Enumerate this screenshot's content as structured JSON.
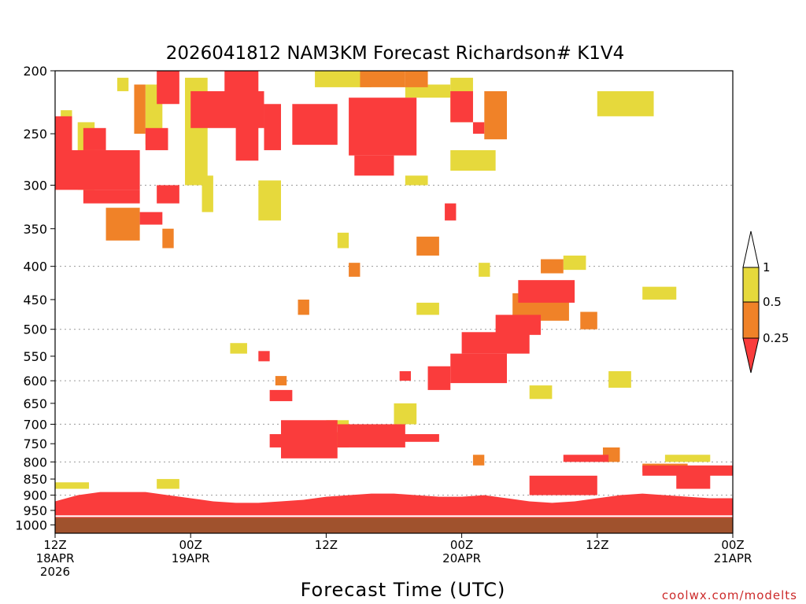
{
  "chart_data": {
    "type": "heatmap",
    "title": "2026041812 NAM3KM Forecast Richardson# K1V4",
    "xlabel": "Forecast Time (UTC)",
    "ylabel": "",
    "credit": "coolwx.com/modelts",
    "x_unit": "hours after 2026-04-18 12Z",
    "xlim": [
      0,
      60
    ],
    "x_ticks": [
      {
        "value": 0,
        "lines": [
          "12Z",
          "18APR",
          "2026"
        ]
      },
      {
        "value": 12,
        "lines": [
          "00Z",
          "19APR"
        ]
      },
      {
        "value": 24,
        "lines": [
          "12Z"
        ]
      },
      {
        "value": 36,
        "lines": [
          "00Z",
          "20APR"
        ]
      },
      {
        "value": 48,
        "lines": [
          "12Z"
        ]
      },
      {
        "value": 60,
        "lines": [
          "00Z",
          "21APR"
        ]
      }
    ],
    "y_scale": "log-pressure (reversed)",
    "ylim": [
      1000,
      200
    ],
    "y_ticks": [
      200,
      250,
      300,
      350,
      400,
      450,
      500,
      550,
      600,
      650,
      700,
      750,
      800,
      850,
      900,
      950,
      1000
    ],
    "gridlines_hpa": [
      300,
      400,
      500,
      600,
      700,
      800,
      900,
      1000
    ],
    "colorbar": {
      "ticks": [
        "1",
        "0.5",
        "0.25"
      ],
      "bins": [
        {
          "range": "> 1",
          "color": "#ffffff"
        },
        {
          "range": "0.5 - 1",
          "color": "#e6d93c"
        },
        {
          "range": "0.25 - 0.5",
          "color": "#f08228"
        },
        {
          "range": "< 0.25",
          "color": "#fa3c3c"
        }
      ]
    },
    "ground_color": "#a0522d",
    "ground_top_hpa": 975,
    "series": [
      {
        "category": "0.5 - 1",
        "color": "#e6d93c",
        "regions": [
          {
            "t": [
              5.5,
              6.5
            ],
            "p": [
              205,
              215
            ]
          },
          {
            "t": [
              8,
              9.5
            ],
            "p": [
              210,
              260
            ]
          },
          {
            "t": [
              11.5,
              13.5
            ],
            "p": [
              205,
              300
            ]
          },
          {
            "t": [
              13,
              14
            ],
            "p": [
              290,
              330
            ]
          },
          {
            "t": [
              2,
              3.5
            ],
            "p": [
              240,
              305
            ]
          },
          {
            "t": [
              0.5,
              1.5
            ],
            "p": [
              230,
              255
            ]
          },
          {
            "t": [
              18,
              20
            ],
            "p": [
              295,
              340
            ]
          },
          {
            "t": [
              23,
              28
            ],
            "p": [
              200,
              212
            ]
          },
          {
            "t": [
              31,
              35
            ],
            "p": [
              210,
              220
            ]
          },
          {
            "t": [
              35,
              37
            ],
            "p": [
              205,
              240
            ]
          },
          {
            "t": [
              35,
              39
            ],
            "p": [
              265,
              285
            ]
          },
          {
            "t": [
              31,
              33
            ],
            "p": [
              290,
              300
            ]
          },
          {
            "t": [
              25,
              26
            ],
            "p": [
              355,
              375
            ]
          },
          {
            "t": [
              32,
              34
            ],
            "p": [
              455,
              475
            ]
          },
          {
            "t": [
              37.5,
              38.5
            ],
            "p": [
              395,
              415
            ]
          },
          {
            "t": [
              45,
              47
            ],
            "p": [
              385,
              405
            ]
          },
          {
            "t": [
              48,
              53
            ],
            "p": [
              215,
              235
            ]
          },
          {
            "t": [
              52,
              55
            ],
            "p": [
              430,
              450
            ]
          },
          {
            "t": [
              42,
              44
            ],
            "p": [
              610,
              640
            ]
          },
          {
            "t": [
              49,
              51
            ],
            "p": [
              580,
              615
            ]
          },
          {
            "t": [
              30,
              32
            ],
            "p": [
              650,
              700
            ]
          },
          {
            "t": [
              24,
              26
            ],
            "p": [
              690,
              705
            ]
          },
          {
            "t": [
              9,
              11
            ],
            "p": [
              850,
              880
            ]
          },
          {
            "t": [
              0,
              3
            ],
            "p": [
              860,
              880
            ]
          },
          {
            "t": [
              54,
              58
            ],
            "p": [
              780,
              800
            ]
          },
          {
            "t": [
              15.5,
              17
            ],
            "p": [
              525,
              545
            ]
          }
        ]
      },
      {
        "category": "0.25 - 0.5",
        "color": "#f08228",
        "regions": [
          {
            "t": [
              7,
              8
            ],
            "p": [
              210,
              250
            ]
          },
          {
            "t": [
              4.5,
              7.5
            ],
            "p": [
              325,
              365
            ]
          },
          {
            "t": [
              9.5,
              10.5
            ],
            "p": [
              350,
              375
            ]
          },
          {
            "t": [
              27,
              31
            ],
            "p": [
              200,
              212
            ]
          },
          {
            "t": [
              31,
              33
            ],
            "p": [
              200,
              212
            ]
          },
          {
            "t": [
              38,
              40
            ],
            "p": [
              215,
              255
            ]
          },
          {
            "t": [
              32,
              34
            ],
            "p": [
              360,
              385
            ]
          },
          {
            "t": [
              26,
              27
            ],
            "p": [
              395,
              415
            ]
          },
          {
            "t": [
              21.5,
              22.5
            ],
            "p": [
              450,
              475
            ]
          },
          {
            "t": [
              40.5,
              45.5
            ],
            "p": [
              440,
              485
            ]
          },
          {
            "t": [
              43,
              45
            ],
            "p": [
              390,
              410
            ]
          },
          {
            "t": [
              46.5,
              48
            ],
            "p": [
              470,
              500
            ]
          },
          {
            "t": [
              48.5,
              50
            ],
            "p": [
              760,
              800
            ]
          },
          {
            "t": [
              52,
              56
            ],
            "p": [
              805,
              830
            ]
          },
          {
            "t": [
              23,
              26
            ],
            "p": [
              720,
              760
            ]
          },
          {
            "t": [
              19.5,
              20.5
            ],
            "p": [
              590,
              610
            ]
          },
          {
            "t": [
              37,
              38
            ],
            "p": [
              780,
              810
            ]
          }
        ]
      },
      {
        "category": "< 0.25",
        "color": "#fa3c3c",
        "regions": [
          {
            "t": [
              9,
              11
            ],
            "p": [
              200,
              225
            ]
          },
          {
            "t": [
              15,
              18
            ],
            "p": [
              200,
              230
            ]
          },
          {
            "t": [
              12,
              18.5
            ],
            "p": [
              215,
              245
            ]
          },
          {
            "t": [
              16,
              18
            ],
            "p": [
              240,
              275
            ]
          },
          {
            "t": [
              18.5,
              20
            ],
            "p": [
              225,
              265
            ]
          },
          {
            "t": [
              21,
              25
            ],
            "p": [
              225,
              260
            ]
          },
          {
            "t": [
              26,
              32
            ],
            "p": [
              220,
              270
            ]
          },
          {
            "t": [
              26.5,
              30
            ],
            "p": [
              270,
              290
            ]
          },
          {
            "t": [
              35,
              37
            ],
            "p": [
              215,
              240
            ]
          },
          {
            "t": [
              37,
              38
            ],
            "p": [
              240,
              250
            ]
          },
          {
            "t": [
              0,
              7.5
            ],
            "p": [
              265,
              305
            ]
          },
          {
            "t": [
              2.5,
              7.5
            ],
            "p": [
              305,
              320
            ]
          },
          {
            "t": [
              0,
              1.5
            ],
            "p": [
              235,
              270
            ]
          },
          {
            "t": [
              2.5,
              4.5
            ],
            "p": [
              245,
              265
            ]
          },
          {
            "t": [
              9,
              11
            ],
            "p": [
              300,
              320
            ]
          },
          {
            "t": [
              8,
              10
            ],
            "p": [
              245,
              265
            ]
          },
          {
            "t": [
              7.5,
              9.5
            ],
            "p": [
              330,
              345
            ]
          },
          {
            "t": [
              34.5,
              35.5
            ],
            "p": [
              320,
              340
            ]
          },
          {
            "t": [
              41,
              46
            ],
            "p": [
              420,
              455
            ]
          },
          {
            "t": [
              39,
              43
            ],
            "p": [
              475,
              510
            ]
          },
          {
            "t": [
              36,
              42
            ],
            "p": [
              505,
              545
            ]
          },
          {
            "t": [
              35,
              40
            ],
            "p": [
              545,
              605
            ]
          },
          {
            "t": [
              33,
              35
            ],
            "p": [
              570,
              620
            ]
          },
          {
            "t": [
              20,
              25
            ],
            "p": [
              690,
              790
            ]
          },
          {
            "t": [
              25,
              31
            ],
            "p": [
              700,
              760
            ]
          },
          {
            "t": [
              30,
              34
            ],
            "p": [
              725,
              745
            ]
          },
          {
            "t": [
              19,
              23
            ],
            "p": [
              725,
              760
            ]
          },
          {
            "t": [
              18,
              19
            ],
            "p": [
              540,
              560
            ]
          },
          {
            "t": [
              19,
              21
            ],
            "p": [
              620,
              645
            ]
          },
          {
            "t": [
              30.5,
              31.5
            ],
            "p": [
              580,
              600
            ]
          },
          {
            "t": [
              45,
              49
            ],
            "p": [
              780,
              800
            ]
          },
          {
            "t": [
              52,
              60
            ],
            "p": [
              810,
              840
            ]
          },
          {
            "t": [
              55,
              58
            ],
            "p": [
              830,
              880
            ]
          },
          {
            "t": [
              42,
              48
            ],
            "p": [
              840,
              900
            ]
          }
        ]
      }
    ],
    "boundary_layer": [
      {
        "t": 0,
        "p": 920
      },
      {
        "t": 2,
        "p": 900
      },
      {
        "t": 4,
        "p": 890
      },
      {
        "t": 6,
        "p": 890
      },
      {
        "t": 8,
        "p": 890
      },
      {
        "t": 10,
        "p": 900
      },
      {
        "t": 12,
        "p": 910
      },
      {
        "t": 14,
        "p": 920
      },
      {
        "t": 16,
        "p": 925
      },
      {
        "t": 18,
        "p": 925
      },
      {
        "t": 20,
        "p": 920
      },
      {
        "t": 22,
        "p": 915
      },
      {
        "t": 24,
        "p": 905
      },
      {
        "t": 26,
        "p": 900
      },
      {
        "t": 28,
        "p": 895
      },
      {
        "t": 30,
        "p": 895
      },
      {
        "t": 32,
        "p": 900
      },
      {
        "t": 34,
        "p": 905
      },
      {
        "t": 36,
        "p": 905
      },
      {
        "t": 38,
        "p": 900
      },
      {
        "t": 40,
        "p": 910
      },
      {
        "t": 42,
        "p": 920
      },
      {
        "t": 44,
        "p": 925
      },
      {
        "t": 46,
        "p": 920
      },
      {
        "t": 48,
        "p": 910
      },
      {
        "t": 50,
        "p": 900
      },
      {
        "t": 52,
        "p": 895
      },
      {
        "t": 54,
        "p": 900
      },
      {
        "t": 56,
        "p": 905
      },
      {
        "t": 58,
        "p": 910
      },
      {
        "t": 60,
        "p": 910
      }
    ]
  }
}
